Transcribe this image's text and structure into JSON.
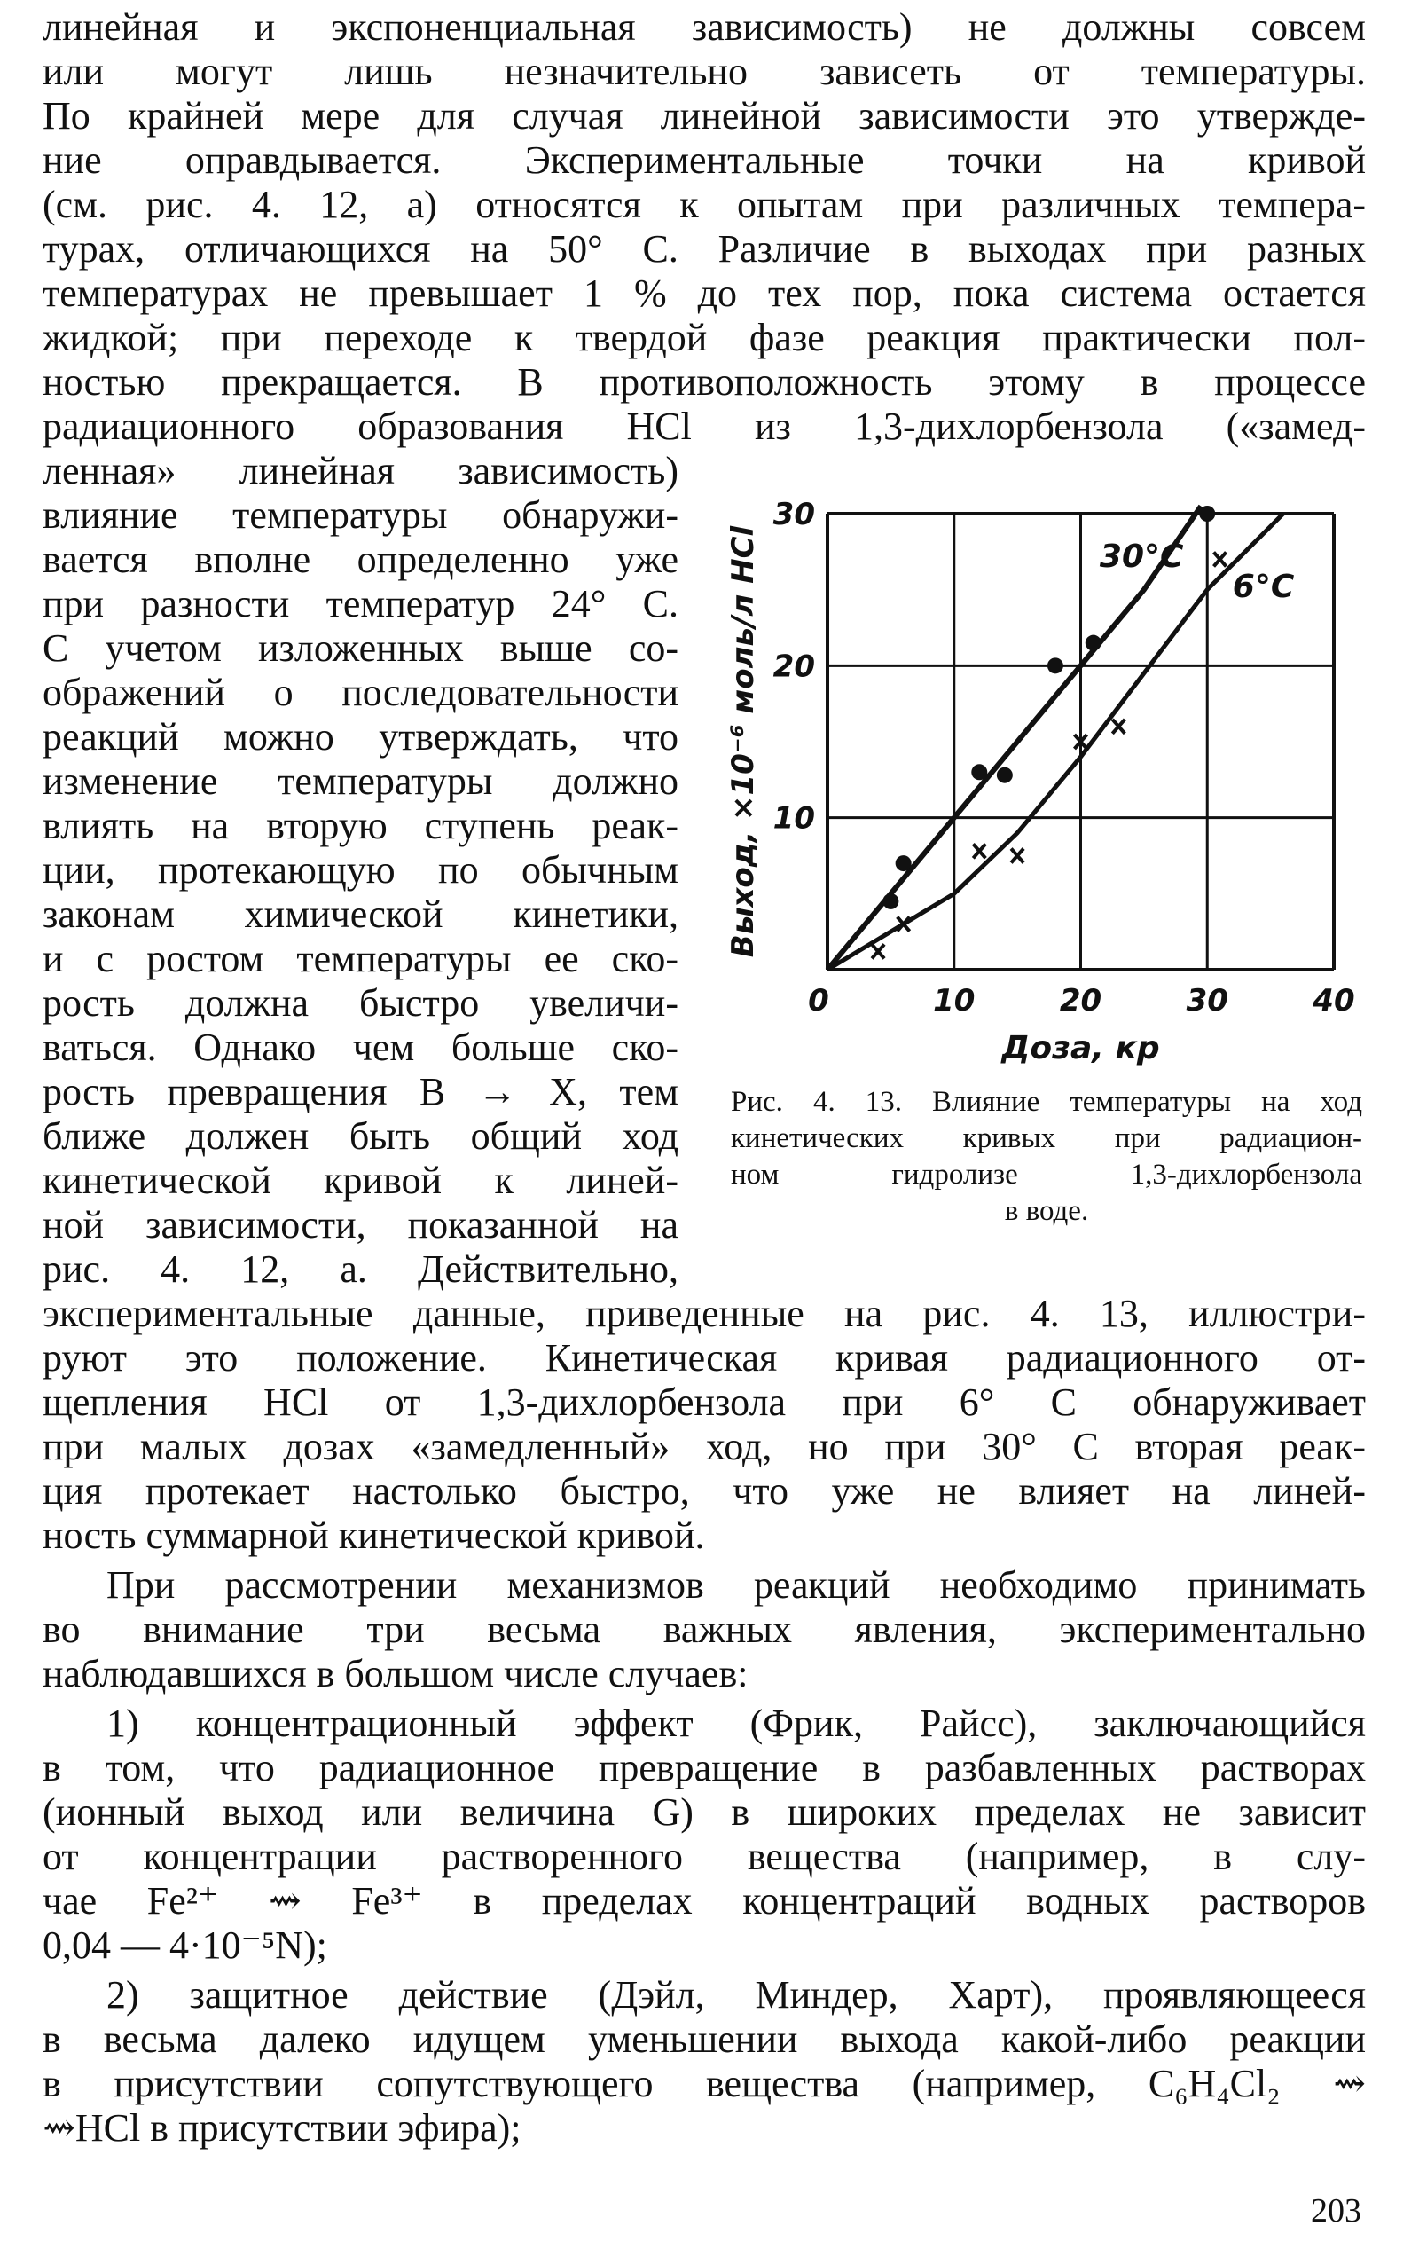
{
  "top_lines": [
    "линейная и экспоненциальная зависимость) не должны совсем",
    "или могут лишь незначительно зависеть от температуры.",
    "По крайней мере для случая линейной зависимости это утвержде-",
    "ние оправдывается. Экспериментальные точки на кривой",
    "(см. рис. 4. 12, а) относятся к опытам при различных темпера-",
    "турах, отличающихся на 50° С. Различие в выходах при разных",
    "температурах не превышает 1 % до тех пор, пока система остается",
    "жидкой; при переходе к твердой фазе реакция практически пол-",
    "ностью прекращается. В противоположность этому в процессе",
    "радиационного образования HCl из 1,3-дихлорбензола («замед-"
  ],
  "narrow_lines": [
    "ленная» линейная зависимость)",
    "влияние температуры обнаружи-",
    "вается вполне определенно уже",
    "при разности температур 24° С.",
    "С учетом изложенных выше со-",
    "ображений о последовательности",
    "реакций можно утверждать, что",
    "изменение температуры должно",
    "влиять на вторую ступень реак-",
    "ции, протекающую по обычным",
    "законам химической кинетики,",
    "и с ростом температуры ее ско-",
    "рость должна быстро увеличи-",
    "ваться. Однако чем больше ско-",
    "рость превращения B → X, тем",
    "ближе должен быть общий ход",
    "кинетической кривой к линей-",
    "ной зависимости, показанной на",
    "рис. 4. 12, а. Действительно,"
  ],
  "after_lines": [
    "экспериментальные данные, приведенные на рис. 4. 13, иллюстри-",
    "руют это положение. Кинетическая кривая радиационного от-",
    "щепления HCl от 1,3-дихлорбензола при 6° С обнаруживает",
    "при малых дозах «замедленный» ход, но при 30° С вторая реак-",
    "ция протекает настолько быстро, что уже не влияет на линей-",
    "ность суммарной кинетической кривой."
  ],
  "paragraphs": [
    [
      "При рассмотрении механизмов реакций необходимо принимать",
      "во внимание три весьма важных явления, экспериментально",
      "наблюдавшихся в большом числе случаев:"
    ],
    [
      "1) концентрационный эффект (Фрик, Райсс), заключающийся",
      "в том, что радиационное превращение в разбавленных растворах",
      "(ионный выход или величина G) в широких пределах не зависит",
      "от концентрации растворенного вещества (например, в слу-",
      "чае Fe²⁺ ⇝ Fe³⁺ в пределах концентраций водных растворов",
      "0,04 — 4·10⁻⁵N);"
    ],
    [
      "2) защитное действие (Дэйл, Миндер, Харт), проявляющееся",
      "в весьма далеко идущем уменьшении выхода какой-либо реакции",
      "в присутствии сопутствующего вещества (например, C₆H₄Cl₂ ⇝",
      "⇝HCl в присутствии эфира);"
    ]
  ],
  "caption_lines": [
    "Рис. 4. 13. Влияние температуры на ход",
    "кинетических кривых при радиацион-",
    "ном гидролизе 1,3-дихлорбензола",
    "в воде."
  ],
  "page_number": "203",
  "chart_data": {
    "type": "scatter",
    "xlabel": "Доза, кр",
    "ylabel": "Выход, ×10⁻⁶ моль/л HCl",
    "xlim": [
      0,
      40
    ],
    "ylim": [
      0,
      30
    ],
    "xticks": [
      "0",
      "10",
      "20",
      "30",
      "40"
    ],
    "yticks": [
      "10",
      "20",
      "30"
    ],
    "grid": true,
    "series": [
      {
        "name": "30°C",
        "marker": "dot",
        "points": [
          [
            5,
            4.5
          ],
          [
            6,
            7
          ],
          [
            12,
            13
          ],
          [
            14,
            12.8
          ],
          [
            18,
            20
          ],
          [
            21,
            21.5
          ],
          [
            30,
            30
          ]
        ],
        "curve": [
          [
            0,
            0
          ],
          [
            10,
            10
          ],
          [
            20,
            20
          ],
          [
            25,
            25
          ],
          [
            29.5,
            30.5
          ]
        ]
      },
      {
        "name": "6°C",
        "marker": "cross",
        "points": [
          [
            4,
            1.2
          ],
          [
            6,
            3
          ],
          [
            12,
            7.8
          ],
          [
            15,
            7.5
          ],
          [
            20,
            15
          ],
          [
            23,
            16
          ],
          [
            31,
            27
          ]
        ],
        "curve": [
          [
            0,
            0
          ],
          [
            5,
            2.5
          ],
          [
            10,
            5
          ],
          [
            15,
            9
          ],
          [
            20,
            14
          ],
          [
            25,
            19.5
          ],
          [
            30,
            25
          ],
          [
            36,
            30
          ]
        ]
      }
    ]
  }
}
